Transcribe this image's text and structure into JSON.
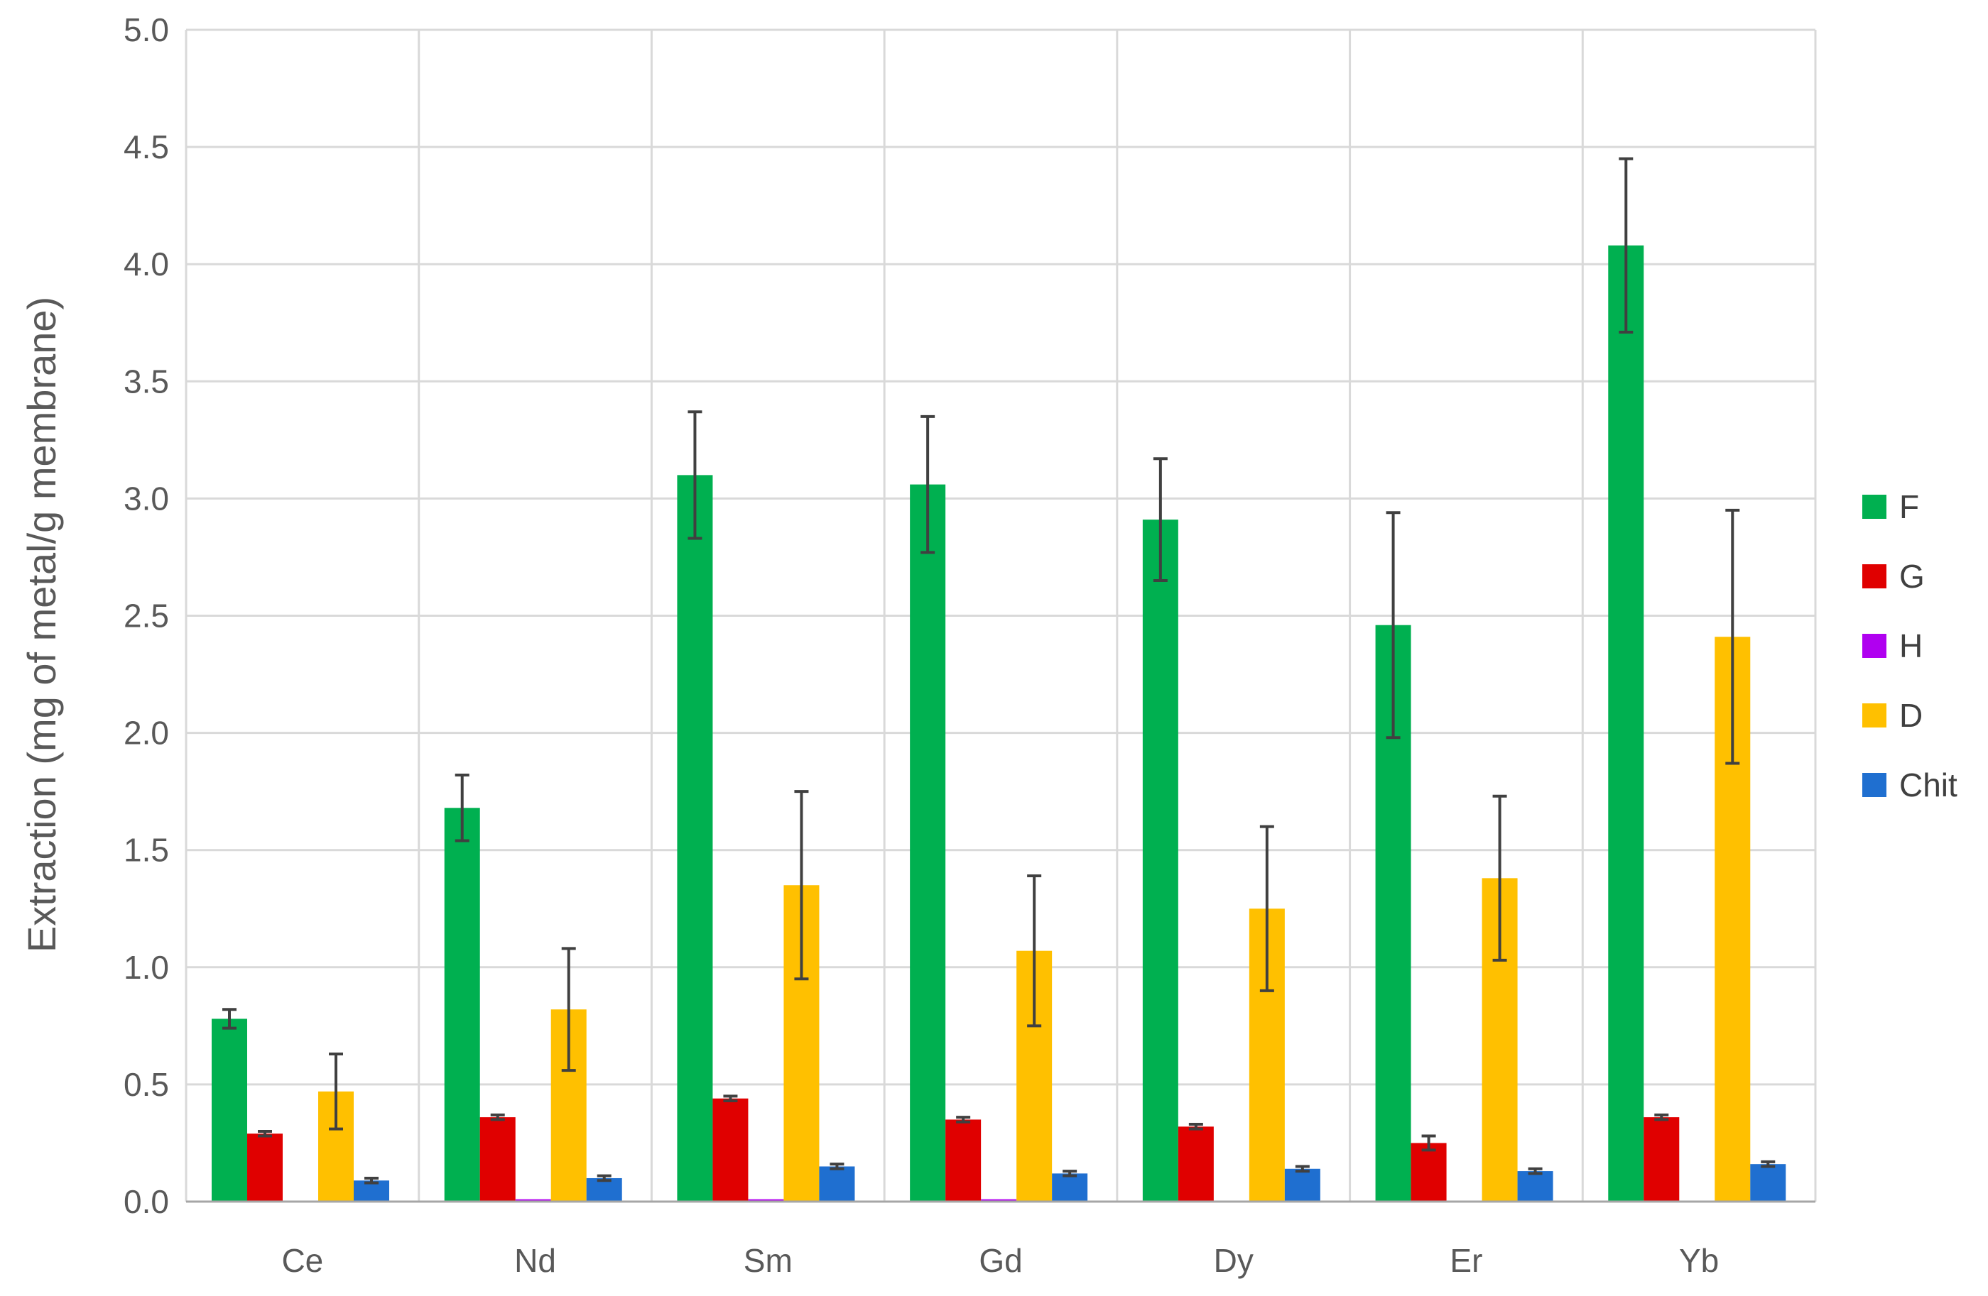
{
  "chart_data": {
    "type": "bar",
    "title": "",
    "xlabel": "",
    "ylabel": "Extraction (mg of metal/g membrane)",
    "ylim": [
      0,
      5.0
    ],
    "yticks": [
      "0.0",
      "0.5",
      "1.0",
      "1.5",
      "2.0",
      "2.5",
      "3.0",
      "3.5",
      "4.0",
      "4.5",
      "5.0"
    ],
    "grid": true,
    "legend_position": "right",
    "categories": [
      "Ce",
      "Nd",
      "Sm",
      "Gd",
      "Dy",
      "Er",
      "Yb"
    ],
    "series": [
      {
        "name": "F",
        "color": "#00B050",
        "values": [
          0.78,
          1.68,
          3.1,
          3.06,
          2.91,
          2.46,
          4.08
        ],
        "errors": [
          0.04,
          0.14,
          0.27,
          0.29,
          0.26,
          0.48,
          0.37
        ]
      },
      {
        "name": "G",
        "color": "#E00000",
        "values": [
          0.29,
          0.36,
          0.44,
          0.35,
          0.32,
          0.25,
          0.36
        ],
        "errors": [
          0.01,
          0.01,
          0.01,
          0.01,
          0.01,
          0.03,
          0.01
        ]
      },
      {
        "name": "H",
        "color": "#B000F0",
        "values": [
          0.0,
          0.01,
          0.01,
          0.01,
          0.0,
          0.0,
          0.0
        ],
        "errors": [
          0,
          0,
          0,
          0,
          0,
          0,
          0
        ]
      },
      {
        "name": "D",
        "color": "#FFC000",
        "values": [
          0.47,
          0.82,
          1.35,
          1.07,
          1.25,
          1.38,
          2.41
        ],
        "errors": [
          0.16,
          0.26,
          0.4,
          0.32,
          0.35,
          0.35,
          0.54
        ]
      },
      {
        "name": "Chit",
        "color": "#1F6FD0",
        "values": [
          0.09,
          0.1,
          0.15,
          0.12,
          0.14,
          0.13,
          0.16
        ],
        "errors": [
          0.01,
          0.01,
          0.01,
          0.01,
          0.01,
          0.01,
          0.01
        ]
      }
    ]
  }
}
